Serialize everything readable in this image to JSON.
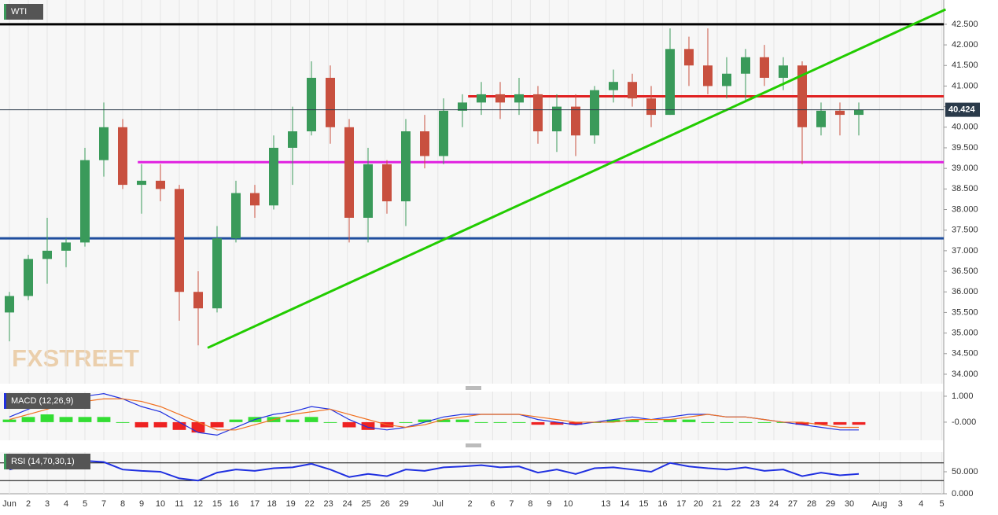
{
  "chart_data": [
    {
      "type": "candlestick",
      "title": "WTI",
      "watermark": "FXSTREET",
      "xlim": [
        -0.5,
        49.5
      ],
      "ylim": [
        33.77,
        43.09
      ],
      "yticks": [
        {
          "value": 34,
          "label": "34.000"
        },
        {
          "value": 34.5,
          "label": "34.500"
        },
        {
          "value": 35,
          "label": "35.000"
        },
        {
          "value": 35.5,
          "label": "35.500"
        },
        {
          "value": 36,
          "label": "36.000"
        },
        {
          "value": 36.5,
          "label": "36.500"
        },
        {
          "value": 37,
          "label": "37.000"
        },
        {
          "value": 37.5,
          "label": "37.500"
        },
        {
          "value": 38,
          "label": "38.000"
        },
        {
          "value": 38.5,
          "label": "38.500"
        },
        {
          "value": 39,
          "label": "39.000"
        },
        {
          "value": 39.5,
          "label": "39.500"
        },
        {
          "value": 40,
          "label": "40.000"
        },
        {
          "value": 40.5,
          "label": "40.500"
        },
        {
          "value": 41,
          "label": "41.000"
        },
        {
          "value": 41.5,
          "label": "41.500"
        },
        {
          "value": 42,
          "label": "42.000"
        },
        {
          "value": 42.5,
          "label": "42.500"
        }
      ],
      "last_price": 40.424,
      "candles": {
        "open": [
          35.5,
          35.9,
          36.8,
          37.0,
          37.2,
          39.2,
          40.0,
          38.6,
          38.7,
          38.5,
          36.0,
          35.6,
          37.3,
          38.4,
          38.1,
          39.5,
          39.9,
          41.2,
          40.0,
          37.8,
          39.1,
          38.2,
          39.9,
          39.3,
          40.4,
          40.6,
          40.8,
          40.6,
          40.8,
          39.9,
          40.5,
          39.8,
          40.9,
          41.1,
          40.7,
          40.3,
          41.9,
          41.5,
          41.0,
          41.3,
          41.7,
          41.2,
          41.5,
          40.0,
          40.4,
          40.3
        ],
        "high": [
          36.0,
          36.9,
          37.8,
          37.3,
          39.5,
          40.6,
          40.2,
          39.1,
          39.1,
          38.6,
          36.5,
          37.6,
          38.7,
          38.6,
          39.8,
          40.5,
          41.6,
          41.5,
          40.2,
          39.5,
          39.2,
          40.2,
          40.3,
          40.7,
          40.8,
          41.1,
          41.1,
          41.2,
          41.0,
          40.8,
          40.8,
          41.0,
          41.4,
          41.3,
          41.0,
          42.4,
          42.2,
          42.4,
          41.7,
          41.9,
          42.0,
          41.7,
          41.6,
          40.6,
          40.6,
          40.6
        ],
        "low": [
          34.8,
          35.8,
          36.2,
          36.6,
          37.1,
          38.8,
          38.5,
          37.9,
          38.2,
          35.3,
          34.7,
          35.5,
          37.2,
          37.8,
          38.0,
          38.6,
          39.8,
          39.6,
          37.2,
          37.2,
          37.9,
          37.6,
          39.0,
          39.1,
          40.0,
          40.3,
          40.2,
          40.3,
          39.6,
          39.4,
          39.3,
          39.6,
          40.6,
          40.5,
          40.0,
          40.3,
          41.0,
          40.8,
          40.7,
          40.6,
          41.0,
          40.9,
          39.1,
          39.8,
          39.8,
          39.8
        ],
        "close": [
          35.9,
          36.8,
          37.0,
          37.2,
          39.2,
          40.0,
          38.6,
          38.7,
          38.5,
          36.0,
          35.6,
          37.3,
          38.4,
          38.1,
          39.5,
          39.9,
          41.2,
          40.0,
          37.8,
          39.1,
          38.2,
          39.9,
          39.3,
          40.4,
          40.6,
          40.8,
          40.6,
          40.8,
          39.9,
          40.5,
          39.8,
          40.9,
          41.1,
          40.7,
          40.3,
          41.9,
          41.5,
          41.0,
          41.3,
          41.7,
          41.2,
          41.5,
          40.0,
          40.4,
          40.3,
          40.424
        ]
      },
      "levels": [
        {
          "value": 42.5,
          "from": -0.5,
          "color": "#000000"
        },
        {
          "value": 40.75,
          "from": 24.3,
          "color": "#e02020"
        },
        {
          "value": 39.15,
          "from": 6.8,
          "color": "#e020e0"
        },
        {
          "value": 37.3,
          "from": -0.5,
          "color": "#1f4e9e"
        }
      ],
      "trendlines": [
        {
          "x": [
            10.5,
            49.6
          ],
          "y": [
            34.64,
            42.86
          ],
          "color": "#22cc00"
        }
      ]
    },
    {
      "type": "macd",
      "title": "MACD (12,26,9)",
      "xlim": [
        -0.5,
        49.5
      ],
      "ylim": [
        -0.7,
        1.18
      ],
      "yticks": [
        {
          "value": 1,
          "label": "1.000"
        },
        {
          "value": 0,
          "label": "-0.000"
        }
      ],
      "series": [
        {
          "name": "MACD",
          "color": "#2030e0",
          "values": [
            0.2,
            0.5,
            0.8,
            0.9,
            1.0,
            1.1,
            0.9,
            0.6,
            0.4,
            0.0,
            -0.4,
            -0.5,
            -0.2,
            0.1,
            0.3,
            0.4,
            0.6,
            0.5,
            0.1,
            -0.2,
            -0.3,
            -0.2,
            0.0,
            0.2,
            0.3,
            0.3,
            0.3,
            0.3,
            0.1,
            0.0,
            -0.1,
            0.0,
            0.1,
            0.2,
            0.1,
            0.2,
            0.3,
            0.3,
            0.2,
            0.2,
            0.1,
            0.0,
            -0.1,
            -0.2,
            -0.3,
            -0.3
          ]
        },
        {
          "name": "Signal",
          "color": "#f07020",
          "values": [
            0.1,
            0.3,
            0.5,
            0.7,
            0.8,
            0.9,
            0.9,
            0.8,
            0.6,
            0.3,
            0.0,
            -0.3,
            -0.3,
            -0.1,
            0.1,
            0.3,
            0.4,
            0.5,
            0.3,
            0.1,
            -0.1,
            -0.2,
            -0.1,
            0.1,
            0.2,
            0.3,
            0.3,
            0.3,
            0.2,
            0.1,
            0.0,
            0.0,
            0.0,
            0.1,
            0.1,
            0.1,
            0.2,
            0.3,
            0.2,
            0.2,
            0.1,
            0.0,
            0.0,
            -0.1,
            -0.2,
            -0.2
          ]
        }
      ],
      "histogram": [
        0.1,
        0.2,
        0.3,
        0.2,
        0.2,
        0.2,
        0.0,
        -0.2,
        -0.2,
        -0.3,
        -0.4,
        -0.2,
        0.1,
        0.2,
        0.2,
        0.1,
        0.2,
        0.0,
        -0.2,
        -0.3,
        -0.2,
        0.0,
        0.1,
        0.1,
        0.1,
        0.0,
        0.0,
        0.0,
        -0.1,
        -0.1,
        -0.1,
        0.0,
        0.1,
        0.1,
        0.0,
        0.1,
        0.1,
        0.0,
        0.0,
        0.0,
        0.0,
        0.0,
        -0.1,
        -0.1,
        -0.1,
        -0.1
      ]
    },
    {
      "type": "line",
      "title": "RSI (14,70,30,1)",
      "xlim": [
        -0.5,
        49.5
      ],
      "ylim": [
        0,
        94.6
      ],
      "yticks": [
        {
          "value": 50,
          "label": "50.000"
        },
        {
          "value": 0,
          "label": "0.000"
        }
      ],
      "levels": [
        {
          "value": 70,
          "from": -0.5,
          "color": "#000000"
        },
        {
          "value": 30,
          "from": -0.5,
          "color": "#000000"
        }
      ],
      "series": [
        {
          "name": "RSI",
          "color": "#2030e0",
          "values": [
            55,
            65,
            62,
            60,
            75,
            72,
            55,
            52,
            50,
            35,
            30,
            48,
            55,
            52,
            58,
            60,
            68,
            55,
            38,
            45,
            40,
            55,
            52,
            60,
            62,
            65,
            60,
            62,
            48,
            55,
            45,
            58,
            60,
            55,
            50,
            70,
            62,
            58,
            55,
            60,
            52,
            55,
            40,
            48,
            42,
            45
          ]
        }
      ],
      "xticks": [
        {
          "value": 0,
          "label": "Jun"
        },
        {
          "value": 1,
          "label": "2"
        },
        {
          "value": 2,
          "label": "3"
        },
        {
          "value": 3,
          "label": "4"
        },
        {
          "value": 4,
          "label": "5"
        },
        {
          "value": 5,
          "label": "7"
        },
        {
          "value": 6,
          "label": "8"
        },
        {
          "value": 7,
          "label": "9"
        },
        {
          "value": 8,
          "label": "10"
        },
        {
          "value": 9,
          "label": "11"
        },
        {
          "value": 10,
          "label": "12"
        },
        {
          "value": 11,
          "label": "15"
        },
        {
          "value": 11.9,
          "label": "16"
        },
        {
          "value": 13,
          "label": "17"
        },
        {
          "value": 13.9,
          "label": "18"
        },
        {
          "value": 14.9,
          "label": "19"
        },
        {
          "value": 15.9,
          "label": "22"
        },
        {
          "value": 16.9,
          "label": "23"
        },
        {
          "value": 17.9,
          "label": "24"
        },
        {
          "value": 18.9,
          "label": "25"
        },
        {
          "value": 19.9,
          "label": "26"
        },
        {
          "value": 20.9,
          "label": "29"
        },
        {
          "value": 22.7,
          "label": "Jul"
        },
        {
          "value": 24.4,
          "label": "2"
        },
        {
          "value": 25.6,
          "label": "6"
        },
        {
          "value": 26.6,
          "label": "7"
        },
        {
          "value": 27.6,
          "label": "8"
        },
        {
          "value": 28.6,
          "label": "9"
        },
        {
          "value": 29.6,
          "label": "10"
        },
        {
          "value": 31.6,
          "label": "13"
        },
        {
          "value": 32.6,
          "label": "14"
        },
        {
          "value": 33.6,
          "label": "15"
        },
        {
          "value": 34.6,
          "label": "16"
        },
        {
          "value": 35.6,
          "label": "17"
        },
        {
          "value": 36.5,
          "label": "20"
        },
        {
          "value": 37.5,
          "label": "21"
        },
        {
          "value": 38.5,
          "label": "22"
        },
        {
          "value": 39.5,
          "label": "23"
        },
        {
          "value": 40.5,
          "label": "24"
        },
        {
          "value": 41.5,
          "label": "27"
        },
        {
          "value": 42.5,
          "label": "28"
        },
        {
          "value": 43.5,
          "label": "29"
        },
        {
          "value": 44.5,
          "label": "30"
        },
        {
          "value": 46.1,
          "label": "Aug"
        },
        {
          "value": 47.2,
          "label": "3"
        },
        {
          "value": 48.3,
          "label": "4"
        },
        {
          "value": 49.4,
          "label": "5"
        }
      ]
    }
  ]
}
